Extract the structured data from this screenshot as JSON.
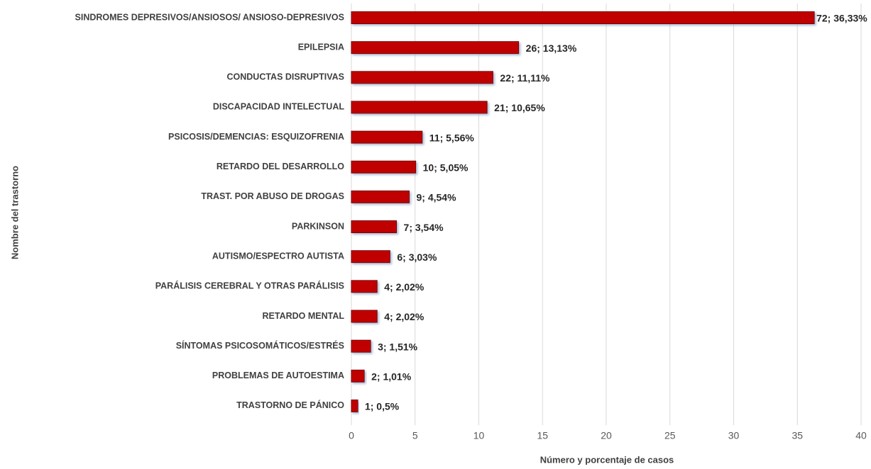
{
  "chart_data": {
    "type": "barh",
    "xlabel": "Número y porcentaje de casos",
    "ylabel": "Nombre del trastorno",
    "categories": [
      "SINDROMES DEPRESIVOS/ANSIOSOS/ ANSIOSO-DEPRESIVOS",
      "EPILEPSIA",
      "CONDUCTAS DISRUPTIVAS",
      "DISCAPACIDAD INTELECTUAL",
      "PSICOSIS/DEMENCIAS: ESQUIZOFRENIA",
      "RETARDO DEL DESARROLLO",
      "TRAST. POR ABUSO DE DROGAS",
      "PARKINSON",
      "AUTISMO/ESPECTRO AUTISTA",
      "PARÁLISIS CEREBRAL Y OTRAS PARÁLISIS",
      "RETARDO MENTAL",
      "SÍNTOMAS PSICOSOMÁTICOS/ESTRÉS",
      "PROBLEMAS DE AUTOESTIMA",
      "TRASTORNO DE PÁNICO"
    ],
    "values": [
      36.33,
      13.13,
      11.11,
      10.65,
      5.56,
      5.05,
      4.54,
      3.54,
      3.03,
      2.02,
      2.02,
      1.51,
      1.01,
      0.5
    ],
    "value_labels": [
      "72; 36,33%",
      "26; 13,13%",
      "22; 11,11%",
      "21; 10,65%",
      "11; 5,56%",
      "10; 5,05%",
      "9; 4,54%",
      "7; 3,54%",
      "6; 3,03%",
      "4; 2,02%",
      "4; 2,02%",
      "3; 1,51%",
      "2; 1,01%",
      "1; 0,5%"
    ],
    "color": "#c00000",
    "xlim": [
      0,
      40
    ],
    "xticks": [
      0,
      5,
      10,
      15,
      20,
      25,
      30,
      35,
      40
    ],
    "grid": true
  }
}
